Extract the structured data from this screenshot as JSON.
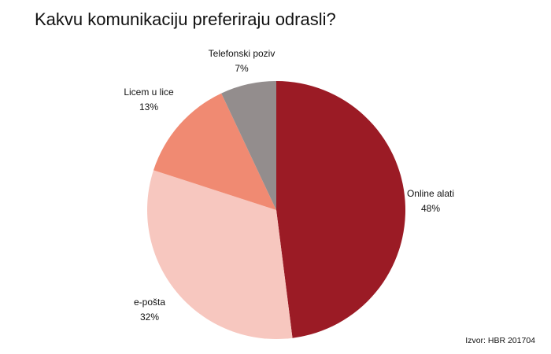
{
  "chart_data": {
    "type": "pie",
    "title": "Kakvu komunikaciju preferiraju odrasli?",
    "slices": [
      {
        "label": "Online alati",
        "value": 48,
        "value_text": "48%",
        "color": "#9b1b25"
      },
      {
        "label": "e-pošta",
        "value": 32,
        "value_text": "32%",
        "color": "#f7c7bf"
      },
      {
        "label": "Licem u lice",
        "value": 13,
        "value_text": "13%",
        "color": "#f08a72"
      },
      {
        "label": "Telefonski poziv",
        "value": 7,
        "value_text": "7%",
        "color": "#938d8d"
      }
    ],
    "start": "12 o'clock",
    "direction": "clockwise",
    "legend": "none (labels beside slices)",
    "source": "Izvor: HBR 201704"
  }
}
